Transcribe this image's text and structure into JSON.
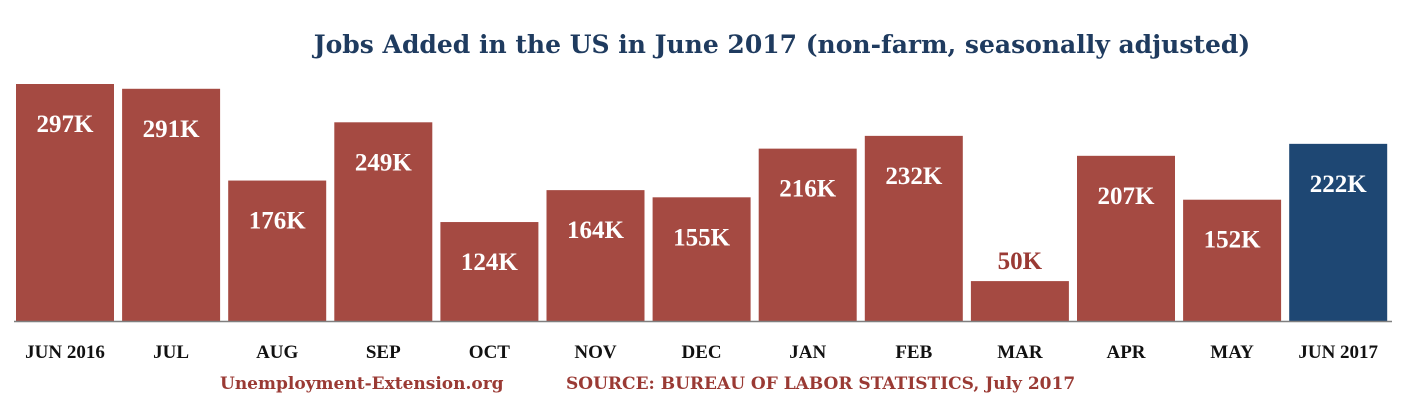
{
  "chart_data": {
    "type": "bar",
    "title": "Jobs Added in the US in June 2017 (non-farm, seasonally adjusted)",
    "categories": [
      "JUN 2016",
      "JUL",
      "AUG",
      "SEP",
      "OCT",
      "NOV",
      "DEC",
      "JAN",
      "FEB",
      "MAR",
      "APR",
      "MAY",
      "JUN 2017"
    ],
    "values": [
      297,
      291,
      176,
      249,
      124,
      164,
      155,
      216,
      232,
      50,
      207,
      152,
      222
    ],
    "data_labels": [
      "297K",
      "291K",
      "176K",
      "249K",
      "124K",
      "164K",
      "155K",
      "216K",
      "232K",
      "50K",
      "207K",
      "152K",
      "222K"
    ],
    "highlight_index": 12,
    "colors": {
      "bar": "#a54a42",
      "highlight": "#1e4773",
      "label_inside": "#ffffff",
      "label_outside": "#9a3a34",
      "axis": "#7f7f7f"
    },
    "ylim": [
      0,
      300
    ],
    "grid": false,
    "xlabel": "",
    "ylabel": ""
  },
  "footer": {
    "website": "Unemployment-Extension.org",
    "source": "SOURCE: BUREAU OF LABOR STATISTICS, July 2017"
  }
}
